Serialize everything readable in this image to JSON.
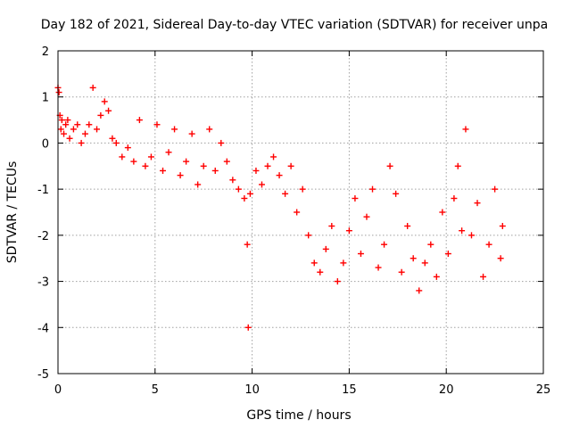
{
  "chart_data": {
    "type": "scatter",
    "title": "Day 182 of 2021, Sidereal Day-to-day VTEC variation (SDTVAR) for receiver unpa",
    "xlabel": "GPS time / hours",
    "ylabel": "SDTVAR / TECUs",
    "xlim": [
      0,
      25
    ],
    "ylim": [
      -5,
      2
    ],
    "xticks": [
      0,
      5,
      10,
      15,
      20,
      25
    ],
    "yticks": [
      -5,
      -4,
      -3,
      -2,
      -1,
      0,
      1,
      2
    ],
    "grid": true,
    "marker": "+",
    "series": [
      {
        "name": "SDTVAR",
        "color": "#ff0000",
        "x": [
          0.0,
          0.05,
          0.1,
          0.15,
          0.2,
          0.3,
          0.4,
          0.5,
          0.6,
          0.8,
          1.0,
          1.2,
          1.4,
          1.6,
          1.8,
          2.0,
          2.2,
          2.4,
          2.6,
          2.8,
          3.0,
          3.3,
          3.6,
          3.9,
          4.2,
          4.5,
          4.8,
          5.1,
          5.4,
          5.7,
          6.0,
          6.3,
          6.6,
          6.9,
          7.2,
          7.5,
          7.8,
          8.1,
          8.4,
          8.7,
          9.0,
          9.3,
          9.6,
          9.75,
          9.8,
          9.9,
          10.2,
          10.5,
          10.8,
          11.1,
          11.4,
          11.7,
          12.0,
          12.3,
          12.6,
          12.9,
          13.2,
          13.5,
          13.8,
          14.1,
          14.4,
          14.7,
          15.0,
          15.3,
          15.6,
          15.9,
          16.2,
          16.5,
          16.8,
          17.1,
          17.4,
          17.7,
          18.0,
          18.3,
          18.6,
          18.9,
          19.2,
          19.5,
          19.8,
          20.1,
          20.4,
          20.6,
          20.8,
          21.0,
          21.3,
          21.6,
          21.9,
          22.2,
          22.5,
          22.8,
          22.9
        ],
        "y": [
          1.2,
          1.1,
          0.6,
          0.3,
          0.5,
          0.2,
          0.4,
          0.5,
          0.1,
          0.3,
          0.4,
          0.0,
          0.2,
          0.4,
          1.2,
          0.3,
          0.6,
          0.9,
          0.7,
          0.1,
          0.0,
          -0.3,
          -0.1,
          -0.4,
          0.5,
          -0.5,
          -0.3,
          0.4,
          -0.6,
          -0.2,
          0.3,
          -0.7,
          -0.4,
          0.2,
          -0.9,
          -0.5,
          0.3,
          -0.6,
          0.0,
          -0.4,
          -0.8,
          -1.0,
          -1.2,
          -2.2,
          -4.0,
          -1.1,
          -0.6,
          -0.9,
          -0.5,
          -0.3,
          -0.7,
          -1.1,
          -0.5,
          -1.5,
          -1.0,
          -2.0,
          -2.6,
          -2.8,
          -2.3,
          -1.8,
          -3.0,
          -2.6,
          -1.9,
          -1.2,
          -2.4,
          -1.6,
          -1.0,
          -2.7,
          -2.2,
          -0.5,
          -1.1,
          -2.8,
          -1.8,
          -2.5,
          -3.2,
          -2.6,
          -2.2,
          -2.9,
          -1.5,
          -2.4,
          -1.2,
          -0.5,
          -1.9,
          0.3,
          -2.0,
          -1.3,
          -2.9,
          -2.2,
          -1.0,
          -2.5,
          -1.8
        ]
      }
    ]
  }
}
